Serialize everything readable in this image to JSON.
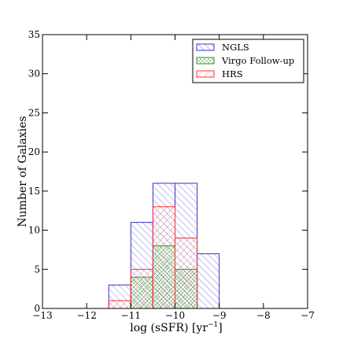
{
  "chart_data": {
    "type": "bar",
    "histogram": true,
    "xlabel": "log (sSFR) [yr",
    "xlabel_sup": "−1",
    "xlabel_close": "]",
    "ylabel": "Number of Galaxies",
    "xlim": [
      -13,
      -7
    ],
    "ylim": [
      0,
      35
    ],
    "xticks": [
      -13,
      -12,
      -11,
      -10,
      -9,
      -8,
      -7
    ],
    "xtick_labels": [
      "−13",
      "−12",
      "−11",
      "−10",
      "−9",
      "−8",
      "−7"
    ],
    "yticks": [
      0,
      5,
      10,
      15,
      20,
      25,
      30,
      35
    ],
    "ytick_labels": [
      "0",
      "5",
      "10",
      "15",
      "20",
      "25",
      "30",
      "35"
    ],
    "grid": false,
    "legend_position": "top-right",
    "bin_edges": [
      -11.5,
      -11.0,
      -10.5,
      -10.0,
      -9.5,
      -9.0
    ],
    "series": [
      {
        "name": "NGLS",
        "values": [
          3,
          11,
          16,
          16,
          7
        ],
        "color": "#3030d0"
      },
      {
        "name": "Virgo Follow-up",
        "values": [
          0,
          4,
          8,
          5,
          0
        ],
        "color": "#2a9a2a"
      },
      {
        "name": "HRS",
        "values": [
          1,
          5,
          13,
          9,
          0
        ],
        "color": "#ff3030"
      }
    ]
  }
}
